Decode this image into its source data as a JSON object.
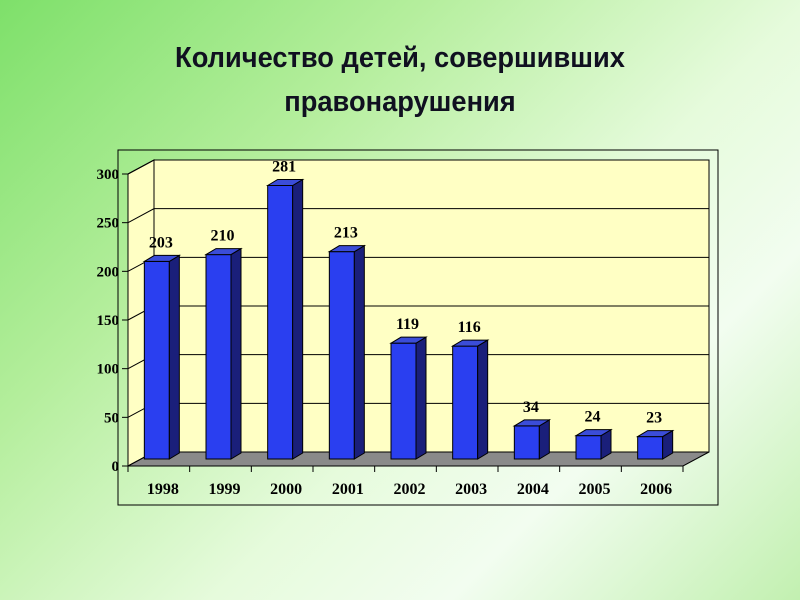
{
  "slide": {
    "title_line1": "Количество детей, совершивших",
    "title_line2": "правонарушения"
  },
  "colors": {
    "wall": "#ffffc4",
    "floor": "#8a8a8a",
    "bar_front": "#2a3ff0",
    "bar_side": "#1a1f7a",
    "bar_top": "#3b4dd8",
    "outline": "#000000"
  },
  "chart_data": {
    "type": "bar",
    "title": "Количество детей, совершивших правонарушения",
    "categories": [
      "1998",
      "1999",
      "2000",
      "2001",
      "2002",
      "2003",
      "2004",
      "2005",
      "2006"
    ],
    "values": [
      203,
      210,
      281,
      213,
      119,
      116,
      34,
      24,
      23
    ],
    "value_labels": [
      "203",
      "210",
      "281",
      "213",
      "119",
      "116",
      "34",
      "24",
      "23"
    ],
    "y_ticks": [
      0,
      50,
      100,
      150,
      200,
      250,
      300
    ],
    "ylim": [
      0,
      300
    ],
    "grid": true,
    "legend": "none",
    "xlabel": "",
    "ylabel": ""
  }
}
